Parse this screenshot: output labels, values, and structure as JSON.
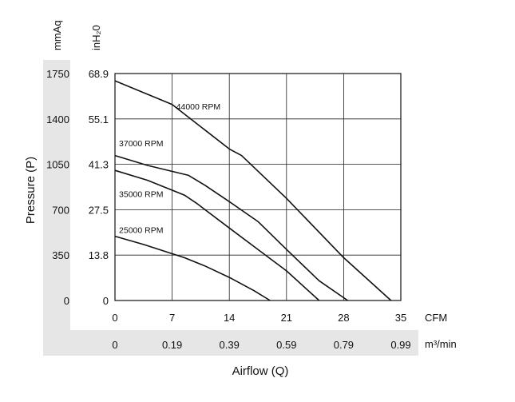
{
  "chart_data": {
    "type": "line",
    "title": "",
    "xlabel": "Airflow (Q)",
    "ylabel": "Pressure (P)",
    "x_unit_primary": "CFM",
    "x_unit_secondary": "m³/min",
    "y_unit_left": "mmAq",
    "y_unit_right": "inH₂0",
    "x_ticks": [
      "0",
      "7",
      "14",
      "21",
      "28",
      "35"
    ],
    "x_ticks_secondary": [
      "0",
      "0.19",
      "0.39",
      "0.59",
      "0.79",
      "0.99"
    ],
    "y_ticks_mmaq": [
      "0",
      "350",
      "700",
      "1050",
      "1400",
      "1750"
    ],
    "y_ticks_inh2o": [
      "0",
      "13.8",
      "27.5",
      "41.3",
      "55.1",
      "68.9"
    ],
    "xlim": [
      0,
      35
    ],
    "ylim": [
      0,
      68.9
    ],
    "grid": true,
    "legend": "inline labels",
    "series": [
      {
        "name": "44000 RPM",
        "label_at": [
          7.2,
          58.0
        ],
        "points": [
          [
            0,
            66.7
          ],
          [
            7,
            59.5
          ],
          [
            14,
            46.0
          ],
          [
            15.5,
            44.0
          ],
          [
            21,
            31.0
          ],
          [
            28,
            13.0
          ],
          [
            33.8,
            0
          ]
        ]
      },
      {
        "name": "37000 RPM",
        "label_at": [
          0.2,
          46.8
        ],
        "points": [
          [
            0,
            44.0
          ],
          [
            4,
            41.0
          ],
          [
            9,
            38.0
          ],
          [
            11,
            35.0
          ],
          [
            14,
            30.0
          ],
          [
            17.5,
            24.0
          ],
          [
            21,
            15.5
          ],
          [
            25,
            6.0
          ],
          [
            28.5,
            0
          ]
        ]
      },
      {
        "name": "35000 RPM",
        "label_at": [
          0.2,
          31.4
        ],
        "points": [
          [
            0,
            39.5
          ],
          [
            4,
            36.5
          ],
          [
            8.5,
            32.0
          ],
          [
            10,
            29.5
          ],
          [
            14,
            22.0
          ],
          [
            17.5,
            15.5
          ],
          [
            21,
            9.0
          ],
          [
            25,
            0
          ]
        ]
      },
      {
        "name": "25000 RPM",
        "label_at": [
          0.2,
          20.5
        ],
        "points": [
          [
            0,
            19.5
          ],
          [
            3.5,
            17.0
          ],
          [
            8.5,
            13.0
          ],
          [
            11,
            10.5
          ],
          [
            14,
            7.0
          ],
          [
            17,
            3.0
          ],
          [
            19,
            0
          ]
        ]
      }
    ]
  }
}
